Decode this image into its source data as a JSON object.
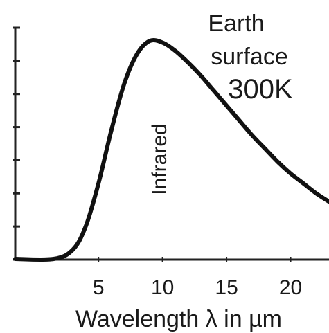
{
  "chart_data": {
    "type": "line",
    "title": "",
    "xlabel": "Wavelength λ in µm",
    "ylabel": "",
    "xlim": [
      -1.5,
      23
    ],
    "ylim": [
      0,
      7
    ],
    "xticks": [
      5,
      10,
      15,
      20
    ],
    "xtick_labels": [
      "5",
      "10",
      "15",
      "20"
    ],
    "yticks": [
      0,
      1,
      2,
      3,
      4,
      5,
      6,
      7
    ],
    "ytick_labels": [
      "",
      "",
      "",
      "",
      "",
      "",
      "",
      ""
    ],
    "grid": false,
    "legend": "none",
    "line_color": "#111111",
    "series": [
      {
        "x": [
          -1.5,
          1.5,
          3,
          4,
          5,
          6,
          7,
          8,
          9,
          10,
          11,
          12,
          13,
          14,
          15,
          16,
          17,
          18,
          19,
          20,
          21,
          22,
          23
        ],
        "y": [
          0.02,
          0.02,
          0.3,
          1.0,
          2.3,
          3.9,
          5.3,
          6.2,
          6.6,
          6.55,
          6.3,
          5.95,
          5.55,
          5.1,
          4.65,
          4.2,
          3.75,
          3.35,
          2.95,
          2.6,
          2.3,
          2.0,
          1.75
        ]
      }
    ],
    "annotations": [
      {
        "lines": [
          "Earth",
          "surface",
          "300K"
        ]
      },
      {
        "text": "Infrared"
      }
    ]
  }
}
